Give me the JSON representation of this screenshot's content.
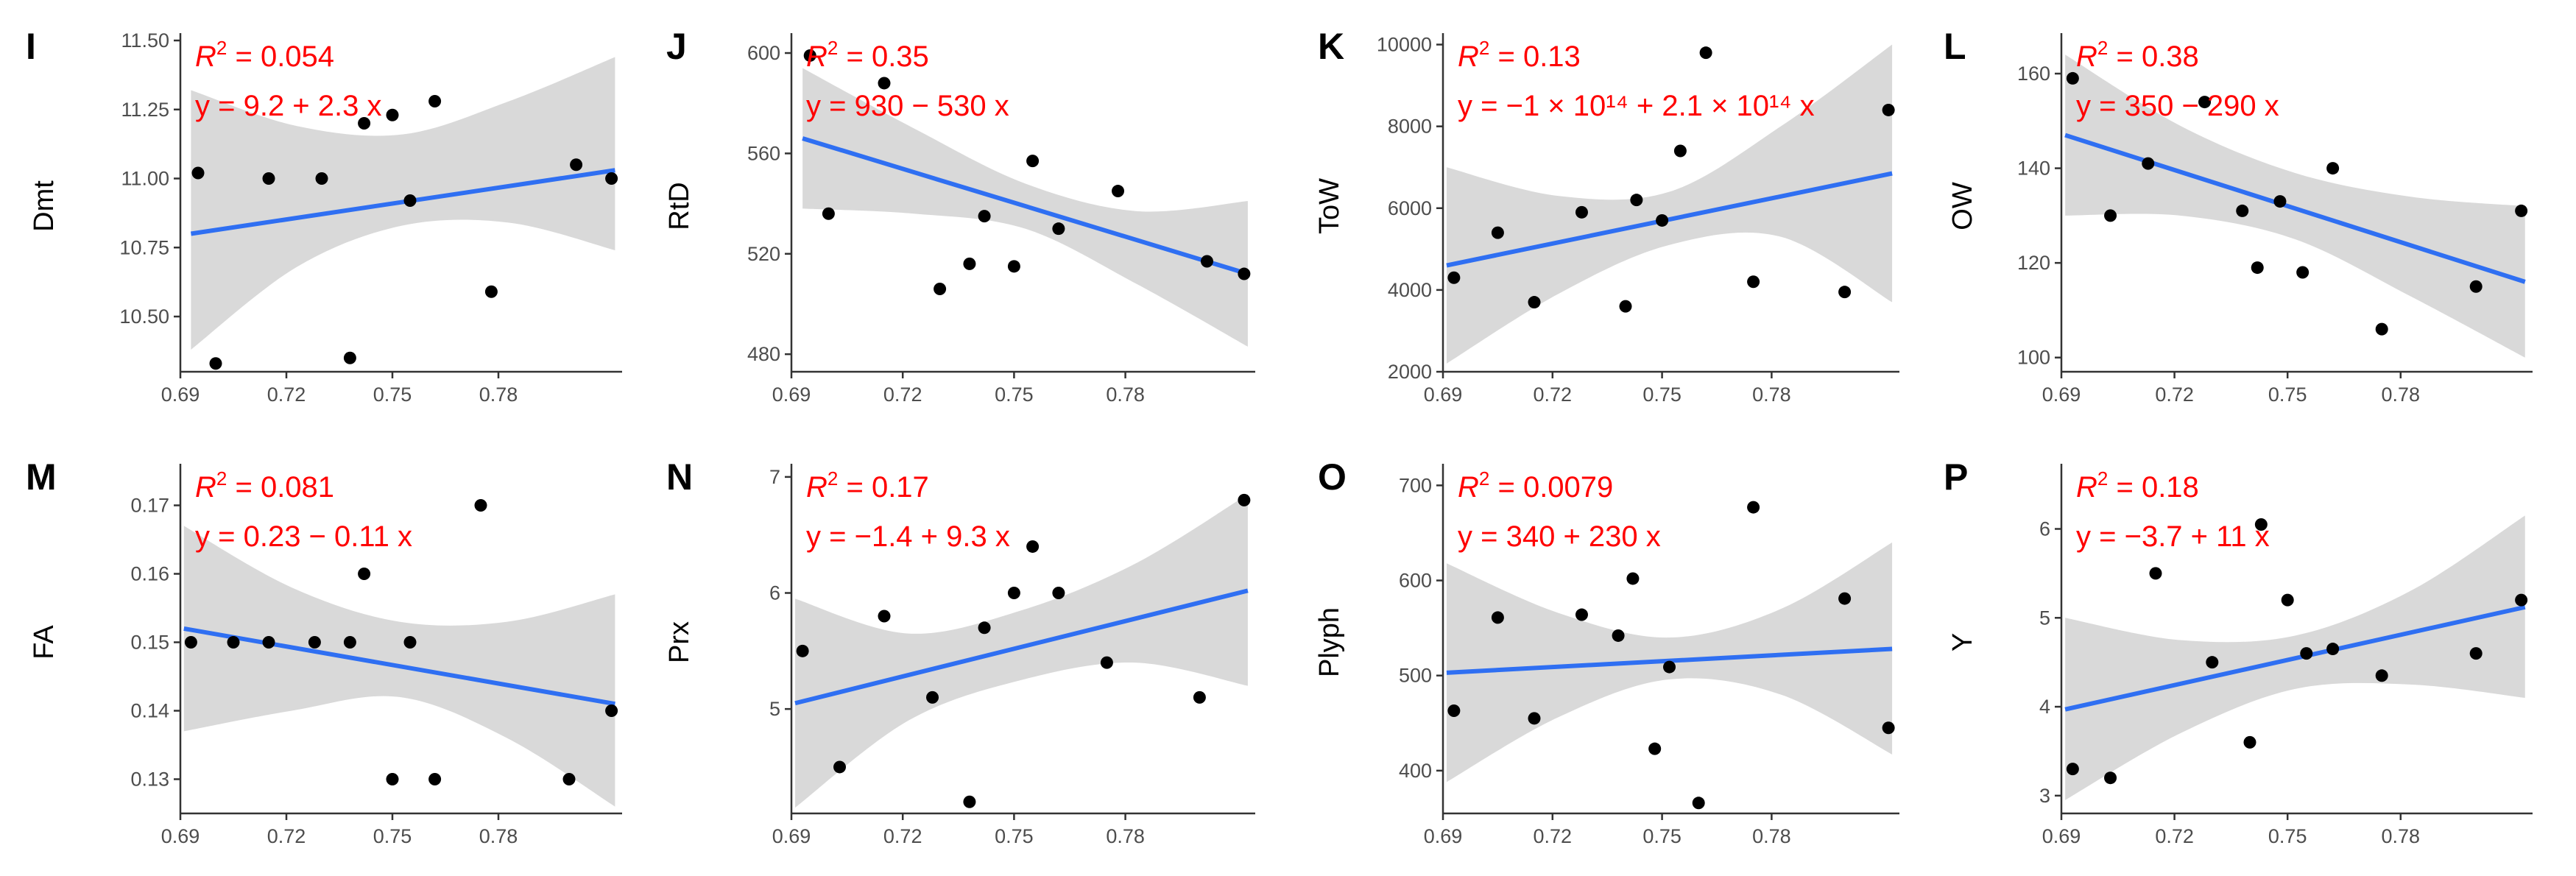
{
  "colors": {
    "line": "#2f6ff2",
    "band": "#d9d9d9",
    "point": "#000000",
    "annotation": "#ff0000",
    "axis": "#333333"
  },
  "chart_data": [
    {
      "type": "scatter",
      "panel": "I",
      "ylabel": "Dmt",
      "xlim": [
        0.69,
        0.815
      ],
      "xticks": [
        "0.69",
        "0.72",
        "0.75",
        "0.78"
      ],
      "ylim": [
        10.3,
        11.5
      ],
      "yticks": [
        "10.50",
        "10.75",
        "11.00",
        "11.25",
        "11.50"
      ],
      "r2_prefix": "R",
      "r2_value": " = 0.054",
      "equation": "y = 9.2 + 2.3 x",
      "x": [
        0.695,
        0.7,
        0.715,
        0.73,
        0.738,
        0.742,
        0.75,
        0.755,
        0.762,
        0.778,
        0.802,
        0.812
      ],
      "y": [
        11.02,
        10.33,
        11.0,
        11.0,
        10.35,
        11.2,
        11.23,
        10.92,
        11.28,
        10.59,
        11.05,
        11.0
      ],
      "fit": [
        10.8,
        11.03
      ],
      "band_upper": [
        11.32,
        11.19,
        11.16,
        11.28,
        11.44
      ],
      "band_lower": [
        10.38,
        10.68,
        10.83,
        10.84,
        10.74
      ]
    },
    {
      "type": "scatter",
      "panel": "J",
      "ylabel": "RtD",
      "xlim": [
        0.69,
        0.815
      ],
      "xticks": [
        "0.69",
        "0.72",
        "0.75",
        "0.78"
      ],
      "ylim": [
        473,
        605
      ],
      "yticks": [
        "480",
        "520",
        "560",
        "600"
      ],
      "r2_prefix": "R",
      "r2_value": " = 0.35",
      "equation": "y = 930 − 530 x",
      "x": [
        0.695,
        0.7,
        0.715,
        0.73,
        0.738,
        0.742,
        0.75,
        0.755,
        0.762,
        0.778,
        0.802,
        0.812
      ],
      "y": [
        599,
        536,
        588,
        506,
        516,
        535,
        515,
        557,
        530,
        545,
        517,
        512
      ],
      "fit": [
        566,
        512
      ],
      "band_upper": [
        594,
        570,
        548,
        537,
        541
      ],
      "band_lower": [
        538,
        536,
        530,
        508,
        483
      ]
    },
    {
      "type": "scatter",
      "panel": "K",
      "ylabel": "ToW",
      "xlim": [
        0.69,
        0.815
      ],
      "xticks": [
        "0.69",
        "0.72",
        "0.75",
        "0.78"
      ],
      "ylim": [
        2000,
        10100
      ],
      "yticks": [
        "2000",
        "4000",
        "6000",
        "8000",
        "10000"
      ],
      "r2_prefix": "R",
      "r2_value": " = 0.13",
      "equation": "y = −1 × 10¹⁴ + 2.1 × 10¹⁴ x",
      "x": [
        0.693,
        0.705,
        0.715,
        0.728,
        0.74,
        0.743,
        0.75,
        0.755,
        0.762,
        0.775,
        0.8,
        0.812
      ],
      "y": [
        4300,
        5400,
        3700,
        5900,
        3600,
        6200,
        5700,
        7400,
        9800,
        4200,
        3950,
        8400
      ],
      "fit": [
        4600,
        6850
      ],
      "band_upper": [
        7000,
        6300,
        6400,
        8000,
        10000
      ],
      "band_lower": [
        2200,
        3900,
        5100,
        5300,
        3700
      ]
    },
    {
      "type": "scatter",
      "panel": "L",
      "ylabel": "OW",
      "xlim": [
        0.69,
        0.815
      ],
      "xticks": [
        "0.69",
        "0.72",
        "0.75",
        "0.78"
      ],
      "ylim": [
        97,
        167
      ],
      "yticks": [
        "100",
        "120",
        "140",
        "160"
      ],
      "r2_prefix": "R",
      "r2_value": " = 0.38",
      "equation": "y = 350 − 290 x",
      "x": [
        0.693,
        0.703,
        0.713,
        0.728,
        0.738,
        0.742,
        0.748,
        0.754,
        0.762,
        0.775,
        0.8,
        0.812
      ],
      "y": [
        159,
        130,
        141,
        154,
        131,
        119,
        133,
        118,
        140,
        106,
        115,
        131
      ],
      "fit": [
        147,
        116
      ],
      "band_upper": [
        164,
        149,
        139,
        134,
        132
      ],
      "band_lower": [
        130,
        130,
        125,
        113,
        100
      ]
    },
    {
      "type": "scatter",
      "panel": "M",
      "ylabel": "FA",
      "xlim": [
        0.69,
        0.815
      ],
      "xticks": [
        "0.69",
        "0.72",
        "0.75",
        "0.78"
      ],
      "ylim": [
        0.125,
        0.175
      ],
      "yticks": [
        "0.13",
        "0.14",
        "0.15",
        "0.16",
        "0.17"
      ],
      "r2_prefix": "R",
      "r2_value": " = 0.081",
      "equation": "y = 0.23 − 0.11 x",
      "x": [
        0.693,
        0.705,
        0.715,
        0.728,
        0.738,
        0.742,
        0.75,
        0.755,
        0.762,
        0.775,
        0.8,
        0.812
      ],
      "y": [
        0.15,
        0.15,
        0.15,
        0.15,
        0.15,
        0.16,
        0.13,
        0.15,
        0.13,
        0.17,
        0.13,
        0.14
      ],
      "fit": [
        0.152,
        0.141
      ],
      "band_upper": [
        0.167,
        0.158,
        0.153,
        0.153,
        0.157
      ],
      "band_lower": [
        0.137,
        0.14,
        0.142,
        0.136,
        0.126
      ]
    },
    {
      "type": "scatter",
      "panel": "N",
      "ylabel": "Prx",
      "xlim": [
        0.69,
        0.815
      ],
      "xticks": [
        "0.69",
        "0.72",
        "0.75",
        "0.78"
      ],
      "ylim": [
        4.1,
        7.05
      ],
      "yticks": [
        "5",
        "6",
        "7"
      ],
      "r2_prefix": "R",
      "r2_value": " = 0.17",
      "equation": "y = −1.4 + 9.3 x",
      "x": [
        0.693,
        0.703,
        0.715,
        0.728,
        0.738,
        0.742,
        0.75,
        0.755,
        0.762,
        0.775,
        0.8,
        0.812
      ],
      "y": [
        5.5,
        4.5,
        5.8,
        5.1,
        4.2,
        5.7,
        6.0,
        6.4,
        6.0,
        5.4,
        5.1,
        6.8
      ],
      "fit": [
        5.05,
        6.02
      ],
      "band_upper": [
        5.95,
        5.65,
        5.85,
        6.25,
        6.85
      ],
      "band_lower": [
        4.15,
        4.9,
        5.25,
        5.4,
        5.2
      ]
    },
    {
      "type": "scatter",
      "panel": "O",
      "ylabel": "Plyph",
      "xlim": [
        0.69,
        0.815
      ],
      "xticks": [
        "0.69",
        "0.72",
        "0.75",
        "0.78"
      ],
      "ylim": [
        355,
        715
      ],
      "yticks": [
        "400",
        "500",
        "600",
        "700"
      ],
      "r2_prefix": "R",
      "r2_value": " = 0.0079",
      "equation": "y = 340 + 230 x",
      "x": [
        0.693,
        0.705,
        0.715,
        0.728,
        0.738,
        0.742,
        0.748,
        0.752,
        0.76,
        0.775,
        0.8,
        0.812
      ],
      "y": [
        463,
        561,
        455,
        564,
        542,
        602,
        423,
        509,
        366,
        677,
        581,
        445
      ],
      "fit": [
        503,
        528
      ],
      "band_upper": [
        618,
        566,
        540,
        570,
        640
      ],
      "band_lower": [
        388,
        456,
        496,
        480,
        417
      ]
    },
    {
      "type": "scatter",
      "panel": "P",
      "ylabel": "Y",
      "xlim": [
        0.69,
        0.815
      ],
      "xticks": [
        "0.69",
        "0.72",
        "0.75",
        "0.78"
      ],
      "ylim": [
        2.8,
        6.65
      ],
      "yticks": [
        "3",
        "4",
        "5",
        "6"
      ],
      "r2_prefix": "R",
      "r2_value": " = 0.18",
      "equation": "y = −3.7 + 11 x",
      "x": [
        0.693,
        0.703,
        0.715,
        0.73,
        0.74,
        0.743,
        0.75,
        0.755,
        0.762,
        0.775,
        0.8,
        0.812
      ],
      "y": [
        3.3,
        3.2,
        5.5,
        4.5,
        3.6,
        6.05,
        5.2,
        4.6,
        4.65,
        4.35,
        4.6,
        5.2
      ],
      "fit": [
        3.97,
        5.12
      ],
      "band_upper": [
        5.0,
        4.75,
        4.8,
        5.3,
        6.15
      ],
      "band_lower": [
        2.95,
        3.7,
        4.2,
        4.25,
        4.1
      ]
    }
  ]
}
